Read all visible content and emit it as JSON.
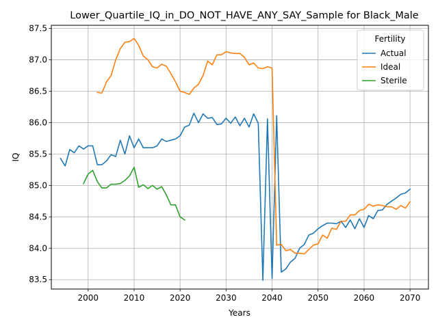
{
  "chart_data": {
    "type": "line",
    "title": "Lower_Quartile_IQ_in_DO_NOT_HAVE_ANY_SAY_Sample for Black_Male",
    "xlabel": "Years",
    "ylabel": "IQ",
    "xlim": [
      1992,
      2074
    ],
    "ylim": [
      83.35,
      87.55
    ],
    "xticks": [
      2000,
      2010,
      2020,
      2030,
      2040,
      2050,
      2060,
      2070
    ],
    "yticks": [
      83.5,
      84.0,
      84.5,
      85.0,
      85.5,
      86.0,
      86.5,
      87.0,
      87.5
    ],
    "grid": true,
    "legend": {
      "title": "Fertility",
      "position": "top-right"
    },
    "series": [
      {
        "name": "Actual",
        "color": "#1f77b4",
        "x": [
          1994,
          1995,
          1996,
          1997,
          1998,
          1999,
          2000,
          2001,
          2002,
          2003,
          2004,
          2005,
          2006,
          2007,
          2008,
          2009,
          2010,
          2011,
          2012,
          2013,
          2014,
          2015,
          2016,
          2017,
          2018,
          2019,
          2020,
          2021,
          2022,
          2023,
          2024,
          2025,
          2026,
          2027,
          2028,
          2029,
          2030,
          2031,
          2032,
          2033,
          2034,
          2035,
          2036,
          2037,
          2038,
          2039,
          2040,
          2041,
          2042,
          2043,
          2044,
          2045,
          2046,
          2047,
          2048,
          2049,
          2050,
          2051,
          2052,
          2053,
          2054,
          2055,
          2056,
          2057,
          2058,
          2059,
          2060,
          2061,
          2062,
          2063,
          2064,
          2065,
          2066,
          2067,
          2068,
          2069,
          2070
        ],
        "y": [
          85.43,
          85.31,
          85.57,
          85.52,
          85.63,
          85.58,
          85.63,
          85.63,
          85.33,
          85.33,
          85.39,
          85.49,
          85.46,
          85.72,
          85.5,
          85.79,
          85.6,
          85.74,
          85.6,
          85.6,
          85.6,
          85.63,
          85.74,
          85.7,
          85.72,
          85.74,
          85.79,
          85.93,
          85.96,
          86.15,
          86.0,
          86.14,
          86.07,
          86.08,
          85.97,
          85.98,
          86.07,
          85.99,
          86.09,
          85.95,
          86.07,
          85.93,
          86.14,
          85.99,
          83.49,
          86.06,
          83.52,
          86.11,
          83.62,
          83.67,
          83.78,
          83.84,
          84.0,
          84.06,
          84.21,
          84.24,
          84.31,
          84.36,
          84.4,
          84.4,
          84.39,
          84.43,
          84.33,
          84.45,
          84.31,
          84.47,
          84.33,
          84.52,
          84.47,
          84.6,
          84.61,
          84.7,
          84.75,
          84.8,
          84.86,
          84.88,
          84.94
        ]
      },
      {
        "name": "Ideal",
        "color": "#ff7f0e",
        "x": [
          2002,
          2003,
          2004,
          2005,
          2006,
          2007,
          2008,
          2009,
          2010,
          2011,
          2012,
          2013,
          2014,
          2015,
          2016,
          2017,
          2018,
          2019,
          2020,
          2021,
          2022,
          2023,
          2024,
          2025,
          2026,
          2027,
          2028,
          2029,
          2030,
          2031,
          2032,
          2033,
          2034,
          2035,
          2036,
          2037,
          2038,
          2039,
          2040,
          2041,
          2042,
          2043,
          2044,
          2045,
          2046,
          2047,
          2048,
          2049,
          2050,
          2051,
          2052,
          2053,
          2054,
          2055,
          2056,
          2057,
          2058,
          2059,
          2060,
          2061,
          2062,
          2063,
          2064,
          2065,
          2066,
          2067,
          2068,
          2069,
          2070
        ],
        "y": [
          86.48,
          86.47,
          86.65,
          86.75,
          87.0,
          87.18,
          87.28,
          87.29,
          87.34,
          87.23,
          87.06,
          87.0,
          86.89,
          86.87,
          86.93,
          86.9,
          86.78,
          86.65,
          86.5,
          86.48,
          86.45,
          86.55,
          86.61,
          86.75,
          86.98,
          86.92,
          87.08,
          87.08,
          87.13,
          87.11,
          87.1,
          87.1,
          87.04,
          86.92,
          86.95,
          86.87,
          86.86,
          86.89,
          86.87,
          84.05,
          84.06,
          83.96,
          83.98,
          83.92,
          83.92,
          83.91,
          83.98,
          84.05,
          84.07,
          84.21,
          84.16,
          84.32,
          84.3,
          84.43,
          84.43,
          84.53,
          84.53,
          84.6,
          84.62,
          84.7,
          84.67,
          84.69,
          84.68,
          84.66,
          84.66,
          84.62,
          84.68,
          84.64,
          84.74
        ]
      },
      {
        "name": "Sterile",
        "color": "#2ca02c",
        "x": [
          1999,
          2000,
          2001,
          2002,
          2003,
          2004,
          2005,
          2006,
          2007,
          2008,
          2009,
          2010,
          2011,
          2012,
          2013,
          2014,
          2015,
          2016,
          2017,
          2018,
          2019,
          2020,
          2021
        ],
        "y": [
          85.03,
          85.18,
          85.24,
          85.06,
          84.96,
          84.96,
          85.02,
          85.02,
          85.03,
          85.08,
          85.15,
          85.29,
          84.97,
          85.01,
          84.95,
          85.0,
          84.94,
          84.98,
          84.85,
          84.69,
          84.69,
          84.5,
          84.45
        ]
      }
    ]
  }
}
